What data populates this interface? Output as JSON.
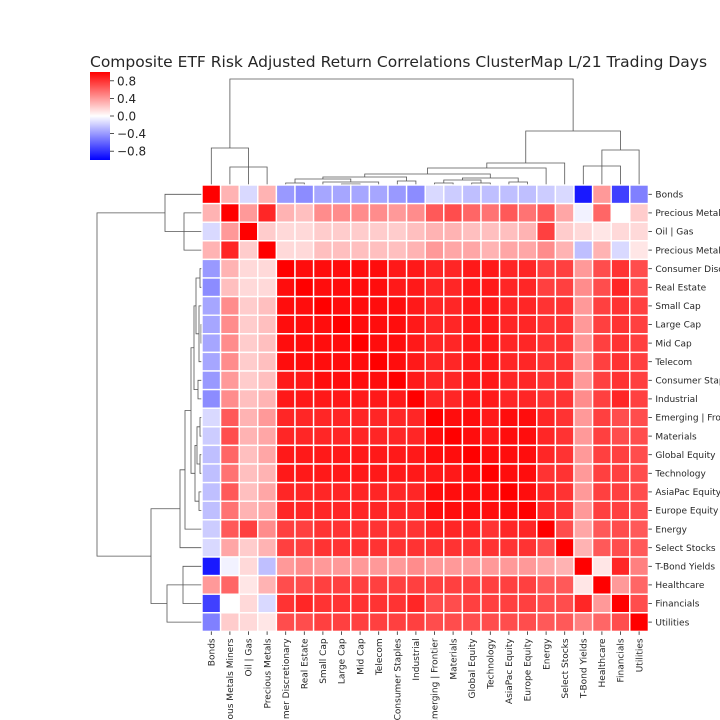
{
  "chart_data": {
    "type": "heatmap",
    "title": "Composite ETF Risk Adjusted Return Correlations ClusterMap L/21 Trading Days",
    "labels": [
      "Bonds",
      "Precious Metals Miners",
      "Oil | Gas",
      "Precious Metals",
      "Consumer Discretionary",
      "Real Estate",
      "Small Cap",
      "Large Cap",
      "Mid Cap",
      "Telecom",
      "Consumer Staples",
      "Industrial",
      "Emerging | Frontier",
      "Materials",
      "Global Equity",
      "Technology",
      "AsiaPac Equity",
      "Europe Equity",
      "Energy",
      "Select Stocks",
      "T-Bond Yields",
      "Healthcare",
      "Financials",
      "Utilities"
    ],
    "row_tick_labels": [
      "Bonds",
      "Precious Metals Miners",
      "Oil | Gas",
      "Precious Metals",
      "Consumer Discretionary",
      "Real Estate",
      "Small Cap",
      "Large Cap",
      "Mid Cap",
      "Telecom",
      "Consumer Staples",
      "Industrial",
      "Emerging | Frontier",
      "Materials",
      "Global Equity",
      "Technology",
      "AsiaPac Equity",
      "Europe Equity",
      "Energy",
      "Select Stocks",
      "T-Bond Yields",
      "Healthcare",
      "Financials",
      "Utilities"
    ],
    "col_tick_labels": [
      "Bonds",
      "Precious Metals Miners",
      "Oil | Gas",
      "Precious Metals",
      "Consumer Discretionary",
      "Real Estate",
      "Small Cap",
      "Large Cap",
      "Mid Cap",
      "Telecom",
      "Consumer Staples",
      "Industrial",
      "Emerging | Frontier",
      "Materials",
      "Global Equity",
      "Technology",
      "AsiaPac Equity",
      "Europe Equity",
      "Energy",
      "Select Stocks",
      "T-Bond Yields",
      "Healthcare",
      "Financials",
      "Utilities"
    ],
    "colorbar": {
      "vmin": -1.0,
      "vmax": 1.0,
      "ticks": [
        0.8,
        0.4,
        0.0,
        -0.4,
        -0.8
      ],
      "tick_labels": [
        "0.8",
        "0.4",
        "0.0",
        "−0.4",
        "−0.8"
      ],
      "colormap": "bwr"
    },
    "values": [
      [
        1.0,
        0.3,
        -0.15,
        0.3,
        -0.4,
        -0.45,
        -0.35,
        -0.35,
        -0.35,
        -0.35,
        -0.4,
        -0.45,
        -0.15,
        -0.2,
        -0.25,
        -0.25,
        -0.25,
        -0.25,
        -0.2,
        -0.15,
        -0.9,
        0.4,
        -0.75,
        -0.5
      ],
      [
        0.3,
        1.0,
        0.4,
        0.85,
        0.3,
        0.25,
        0.45,
        0.45,
        0.45,
        0.45,
        0.4,
        0.45,
        0.65,
        0.7,
        0.6,
        0.55,
        0.65,
        0.55,
        0.65,
        0.35,
        -0.05,
        0.6,
        0.0,
        0.2
      ],
      [
        -0.15,
        0.4,
        1.0,
        0.2,
        0.15,
        0.15,
        0.2,
        0.2,
        0.2,
        0.2,
        0.2,
        0.25,
        0.3,
        0.3,
        0.25,
        0.25,
        0.25,
        0.3,
        0.75,
        0.2,
        0.15,
        0.1,
        0.15,
        0.15
      ],
      [
        0.3,
        0.85,
        0.2,
        1.0,
        0.15,
        0.15,
        0.25,
        0.25,
        0.25,
        0.25,
        0.25,
        0.3,
        0.4,
        0.35,
        0.35,
        0.3,
        0.35,
        0.35,
        0.45,
        0.3,
        -0.25,
        0.3,
        -0.15,
        0.1
      ],
      [
        -0.4,
        0.3,
        0.15,
        0.15,
        1.0,
        0.95,
        0.95,
        0.95,
        0.95,
        0.95,
        0.9,
        0.9,
        0.85,
        0.85,
        0.9,
        0.9,
        0.85,
        0.85,
        0.75,
        0.75,
        0.4,
        0.7,
        0.8,
        0.7
      ],
      [
        -0.45,
        0.25,
        0.15,
        0.15,
        0.95,
        1.0,
        0.95,
        0.95,
        0.95,
        0.95,
        0.9,
        0.9,
        0.85,
        0.85,
        0.9,
        0.9,
        0.85,
        0.85,
        0.75,
        0.75,
        0.45,
        0.7,
        0.85,
        0.7
      ],
      [
        -0.35,
        0.45,
        0.2,
        0.25,
        0.95,
        0.95,
        1.0,
        0.95,
        0.95,
        0.95,
        0.95,
        0.9,
        0.85,
        0.85,
        0.9,
        0.9,
        0.85,
        0.85,
        0.8,
        0.8,
        0.4,
        0.75,
        0.8,
        0.75
      ],
      [
        -0.35,
        0.45,
        0.2,
        0.25,
        0.95,
        0.95,
        0.95,
        1.0,
        0.95,
        0.95,
        0.95,
        0.9,
        0.85,
        0.85,
        0.9,
        0.9,
        0.85,
        0.85,
        0.8,
        0.8,
        0.4,
        0.75,
        0.8,
        0.75
      ],
      [
        -0.35,
        0.45,
        0.2,
        0.25,
        0.95,
        0.95,
        0.95,
        0.95,
        1.0,
        0.95,
        0.95,
        0.9,
        0.85,
        0.85,
        0.9,
        0.9,
        0.85,
        0.85,
        0.8,
        0.8,
        0.4,
        0.75,
        0.8,
        0.75
      ],
      [
        -0.35,
        0.45,
        0.2,
        0.25,
        0.95,
        0.95,
        0.95,
        0.95,
        0.95,
        1.0,
        0.95,
        0.9,
        0.85,
        0.85,
        0.9,
        0.9,
        0.85,
        0.85,
        0.8,
        0.8,
        0.4,
        0.75,
        0.8,
        0.75
      ],
      [
        -0.4,
        0.4,
        0.2,
        0.25,
        0.9,
        0.9,
        0.95,
        0.95,
        0.95,
        0.95,
        1.0,
        0.9,
        0.85,
        0.85,
        0.9,
        0.9,
        0.85,
        0.85,
        0.8,
        0.8,
        0.4,
        0.75,
        0.8,
        0.75
      ],
      [
        -0.45,
        0.45,
        0.25,
        0.3,
        0.9,
        0.9,
        0.9,
        0.9,
        0.9,
        0.9,
        0.9,
        1.0,
        0.85,
        0.85,
        0.9,
        0.9,
        0.85,
        0.85,
        0.8,
        0.8,
        0.45,
        0.75,
        0.85,
        0.75
      ],
      [
        -0.15,
        0.65,
        0.3,
        0.4,
        0.85,
        0.85,
        0.85,
        0.85,
        0.85,
        0.85,
        0.85,
        0.85,
        1.0,
        0.95,
        0.95,
        0.9,
        0.95,
        0.95,
        0.85,
        0.8,
        0.4,
        0.75,
        0.7,
        0.7
      ],
      [
        -0.2,
        0.7,
        0.3,
        0.35,
        0.85,
        0.85,
        0.85,
        0.85,
        0.85,
        0.85,
        0.85,
        0.85,
        0.95,
        1.0,
        0.95,
        0.9,
        0.95,
        0.95,
        0.85,
        0.8,
        0.4,
        0.75,
        0.7,
        0.7
      ],
      [
        -0.25,
        0.6,
        0.25,
        0.35,
        0.9,
        0.9,
        0.9,
        0.9,
        0.9,
        0.9,
        0.9,
        0.9,
        0.95,
        0.95,
        1.0,
        0.95,
        0.95,
        0.95,
        0.85,
        0.8,
        0.4,
        0.75,
        0.75,
        0.7
      ],
      [
        -0.25,
        0.55,
        0.25,
        0.3,
        0.9,
        0.9,
        0.9,
        0.9,
        0.9,
        0.9,
        0.9,
        0.9,
        0.9,
        0.9,
        0.95,
        1.0,
        0.95,
        0.95,
        0.8,
        0.8,
        0.4,
        0.75,
        0.75,
        0.7
      ],
      [
        -0.25,
        0.65,
        0.25,
        0.35,
        0.85,
        0.85,
        0.85,
        0.85,
        0.85,
        0.85,
        0.85,
        0.85,
        0.95,
        0.95,
        0.95,
        0.95,
        1.0,
        0.95,
        0.85,
        0.8,
        0.4,
        0.75,
        0.75,
        0.7
      ],
      [
        -0.25,
        0.55,
        0.3,
        0.35,
        0.85,
        0.85,
        0.85,
        0.85,
        0.85,
        0.85,
        0.85,
        0.85,
        0.95,
        0.95,
        0.95,
        0.95,
        0.95,
        1.0,
        0.85,
        0.8,
        0.4,
        0.75,
        0.75,
        0.7
      ],
      [
        -0.2,
        0.65,
        0.75,
        0.45,
        0.75,
        0.75,
        0.8,
        0.8,
        0.8,
        0.8,
        0.8,
        0.8,
        0.85,
        0.85,
        0.85,
        0.8,
        0.85,
        0.85,
        1.0,
        0.7,
        0.35,
        0.65,
        0.7,
        0.65
      ],
      [
        -0.15,
        0.35,
        0.2,
        0.3,
        0.75,
        0.75,
        0.8,
        0.8,
        0.8,
        0.8,
        0.8,
        0.8,
        0.8,
        0.8,
        0.8,
        0.8,
        0.8,
        0.8,
        0.7,
        1.0,
        0.3,
        0.65,
        0.7,
        0.65
      ],
      [
        -0.9,
        -0.05,
        0.15,
        -0.25,
        0.4,
        0.45,
        0.4,
        0.4,
        0.4,
        0.4,
        0.4,
        0.45,
        0.4,
        0.4,
        0.4,
        0.4,
        0.4,
        0.4,
        0.35,
        0.3,
        1.0,
        0.1,
        0.85,
        0.5
      ],
      [
        0.4,
        0.6,
        0.1,
        0.3,
        0.7,
        0.7,
        0.75,
        0.75,
        0.75,
        0.75,
        0.75,
        0.75,
        0.75,
        0.75,
        0.75,
        0.75,
        0.75,
        0.75,
        0.65,
        0.65,
        0.1,
        1.0,
        0.4,
        0.6
      ],
      [
        -0.75,
        0.0,
        0.15,
        -0.15,
        0.8,
        0.85,
        0.8,
        0.8,
        0.8,
        0.8,
        0.8,
        0.85,
        0.7,
        0.7,
        0.75,
        0.75,
        0.75,
        0.75,
        0.7,
        0.7,
        0.85,
        0.4,
        1.0,
        0.7
      ],
      [
        -0.5,
        0.2,
        0.15,
        0.1,
        0.7,
        0.7,
        0.75,
        0.75,
        0.75,
        0.75,
        0.75,
        0.75,
        0.7,
        0.7,
        0.7,
        0.7,
        0.7,
        0.7,
        0.65,
        0.65,
        0.5,
        0.6,
        0.7,
        1.0
      ]
    ]
  }
}
